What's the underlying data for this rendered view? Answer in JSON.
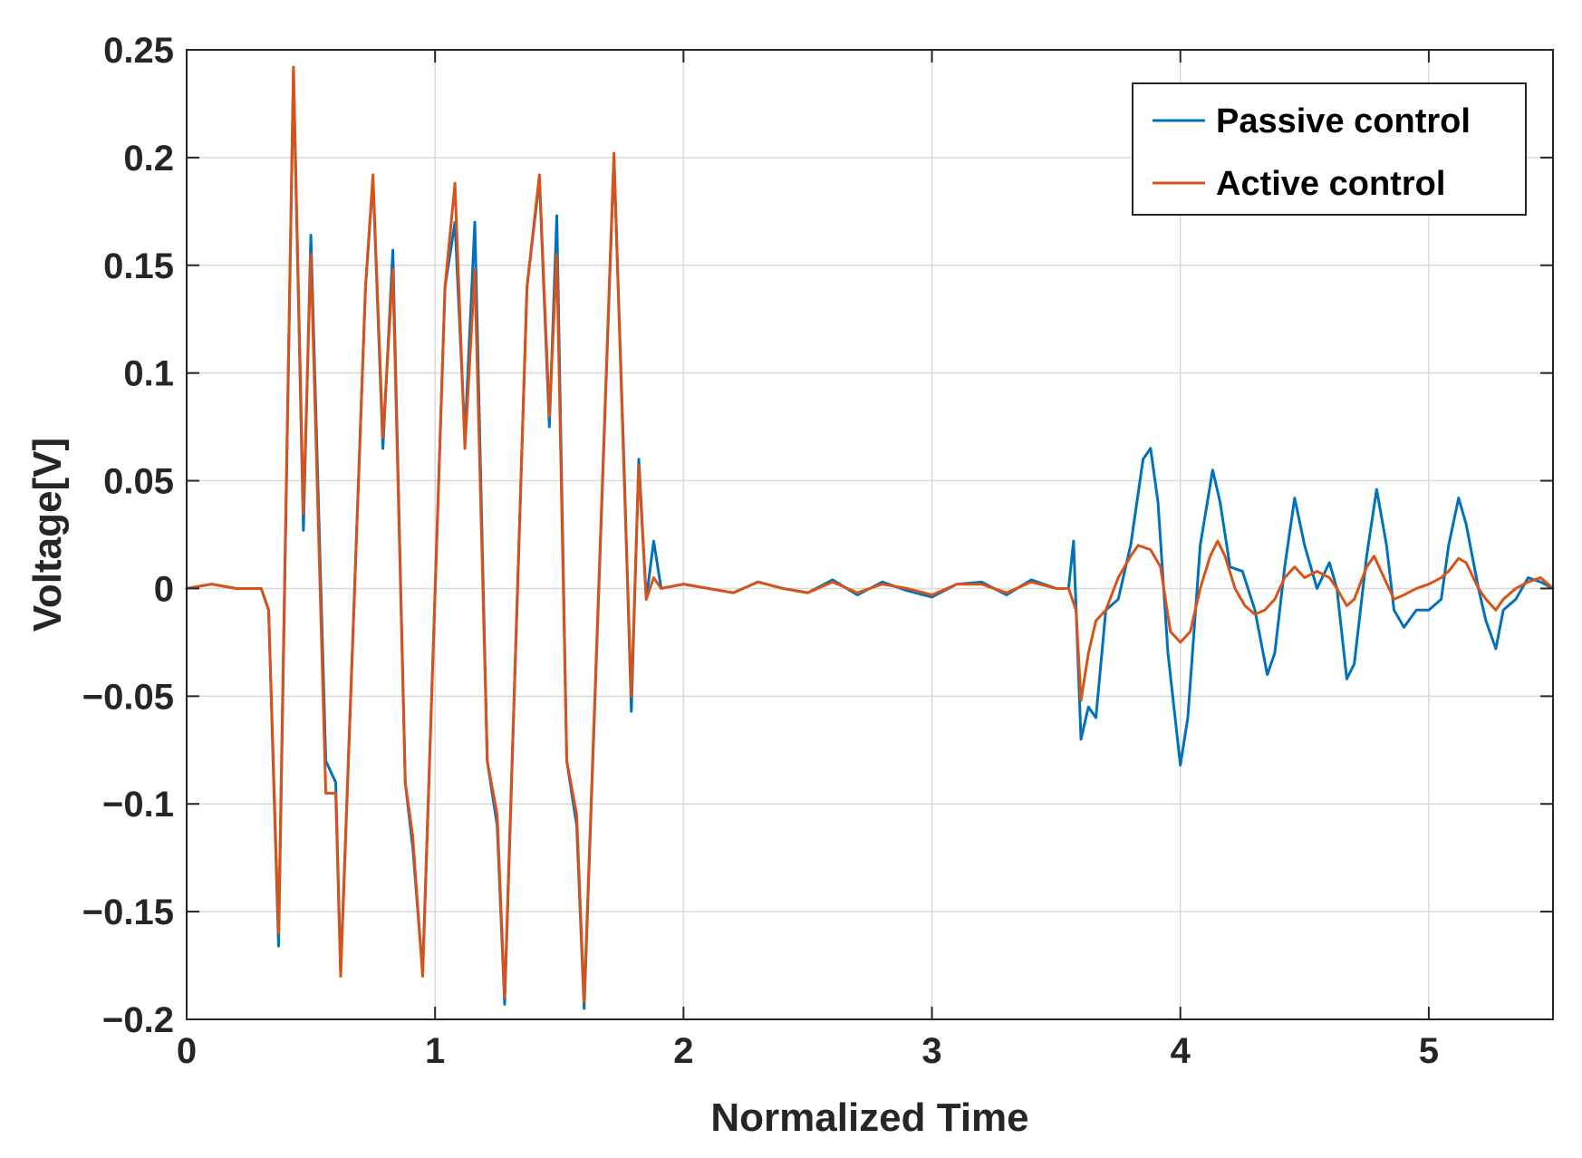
{
  "chart_data": {
    "type": "line",
    "title": "",
    "xlabel": "Normalized Time",
    "ylabel": "Voltage[V]",
    "xlim": [
      0,
      5.5
    ],
    "ylim": [
      -0.2,
      0.25
    ],
    "grid": true,
    "legend_position": "top-right",
    "x_ticks": [
      0,
      1,
      2,
      3,
      4,
      5
    ],
    "x_tick_labels": [
      "0",
      "1",
      "2",
      "3",
      "4",
      "5"
    ],
    "y_ticks": [
      -0.2,
      -0.15,
      -0.1,
      -0.05,
      0,
      0.05,
      0.1,
      0.15,
      0.2,
      0.25
    ],
    "y_tick_labels": [
      "−0.2",
      "−0.15",
      "−0.1",
      "−0.05",
      "0",
      "0.05",
      "0.1",
      "0.15",
      "0.2",
      "0.25"
    ],
    "series": [
      {
        "name": "Passive control",
        "color": "#0072BD",
        "points": [
          [
            0,
            0
          ],
          [
            0.1,
            0.002
          ],
          [
            0.2,
            0
          ],
          [
            0.3,
            0
          ],
          [
            0.33,
            -0.01
          ],
          [
            0.37,
            -0.166
          ],
          [
            0.43,
            0.24
          ],
          [
            0.47,
            0.027
          ],
          [
            0.5,
            0.164
          ],
          [
            0.56,
            -0.08
          ],
          [
            0.6,
            -0.09
          ],
          [
            0.62,
            -0.178
          ],
          [
            0.72,
            0.14
          ],
          [
            0.75,
            0.19
          ],
          [
            0.79,
            0.065
          ],
          [
            0.83,
            0.157
          ],
          [
            0.88,
            -0.09
          ],
          [
            0.91,
            -0.12
          ],
          [
            0.95,
            -0.178
          ],
          [
            1.04,
            0.14
          ],
          [
            1.08,
            0.17
          ],
          [
            1.12,
            0.07
          ],
          [
            1.16,
            0.17
          ],
          [
            1.21,
            -0.08
          ],
          [
            1.25,
            -0.11
          ],
          [
            1.28,
            -0.193
          ],
          [
            1.37,
            0.14
          ],
          [
            1.42,
            0.19
          ],
          [
            1.46,
            0.075
          ],
          [
            1.49,
            0.173
          ],
          [
            1.53,
            -0.08
          ],
          [
            1.57,
            -0.11
          ],
          [
            1.6,
            -0.195
          ],
          [
            1.72,
            0.2
          ],
          [
            1.76,
            0.06
          ],
          [
            1.79,
            -0.057
          ],
          [
            1.82,
            0.06
          ],
          [
            1.85,
            -0.005
          ],
          [
            1.88,
            0.022
          ],
          [
            1.91,
            0
          ],
          [
            2.0,
            0.002
          ],
          [
            2.1,
            0
          ],
          [
            2.2,
            -0.002
          ],
          [
            2.3,
            0.003
          ],
          [
            2.4,
            0
          ],
          [
            2.5,
            -0.002
          ],
          [
            2.6,
            0.004
          ],
          [
            2.7,
            -0.003
          ],
          [
            2.8,
            0.003
          ],
          [
            2.9,
            -0.001
          ],
          [
            3.0,
            -0.004
          ],
          [
            3.1,
            0.002
          ],
          [
            3.2,
            0.003
          ],
          [
            3.3,
            -0.003
          ],
          [
            3.4,
            0.004
          ],
          [
            3.5,
            0
          ],
          [
            3.55,
            0
          ],
          [
            3.57,
            0.022
          ],
          [
            3.6,
            -0.07
          ],
          [
            3.63,
            -0.055
          ],
          [
            3.66,
            -0.06
          ],
          [
            3.7,
            -0.01
          ],
          [
            3.75,
            -0.005
          ],
          [
            3.8,
            0.02
          ],
          [
            3.85,
            0.06
          ],
          [
            3.88,
            0.065
          ],
          [
            3.91,
            0.04
          ],
          [
            3.95,
            -0.03
          ],
          [
            4.0,
            -0.082
          ],
          [
            4.03,
            -0.06
          ],
          [
            4.08,
            0.02
          ],
          [
            4.13,
            0.055
          ],
          [
            4.16,
            0.04
          ],
          [
            4.2,
            0.01
          ],
          [
            4.25,
            0.008
          ],
          [
            4.3,
            -0.01
          ],
          [
            4.35,
            -0.04
          ],
          [
            4.38,
            -0.03
          ],
          [
            4.42,
            0.01
          ],
          [
            4.46,
            0.042
          ],
          [
            4.5,
            0.02
          ],
          [
            4.55,
            0
          ],
          [
            4.6,
            0.012
          ],
          [
            4.63,
            0
          ],
          [
            4.67,
            -0.042
          ],
          [
            4.7,
            -0.035
          ],
          [
            4.75,
            0.015
          ],
          [
            4.79,
            0.046
          ],
          [
            4.83,
            0.02
          ],
          [
            4.86,
            -0.01
          ],
          [
            4.9,
            -0.018
          ],
          [
            4.95,
            -0.01
          ],
          [
            5.0,
            -0.01
          ],
          [
            5.05,
            -0.005
          ],
          [
            5.08,
            0.02
          ],
          [
            5.12,
            0.042
          ],
          [
            5.15,
            0.03
          ],
          [
            5.2,
            0
          ],
          [
            5.23,
            -0.015
          ],
          [
            5.27,
            -0.028
          ],
          [
            5.3,
            -0.01
          ],
          [
            5.35,
            -0.005
          ],
          [
            5.4,
            0.005
          ],
          [
            5.45,
            0.003
          ],
          [
            5.5,
            0
          ]
        ]
      },
      {
        "name": "Active control",
        "color": "#D95319",
        "points": [
          [
            0,
            0
          ],
          [
            0.1,
            0.002
          ],
          [
            0.2,
            0
          ],
          [
            0.3,
            0
          ],
          [
            0.33,
            -0.01
          ],
          [
            0.37,
            -0.16
          ],
          [
            0.43,
            0.242
          ],
          [
            0.47,
            0.035
          ],
          [
            0.5,
            0.155
          ],
          [
            0.56,
            -0.095
          ],
          [
            0.6,
            -0.095
          ],
          [
            0.62,
            -0.18
          ],
          [
            0.72,
            0.14
          ],
          [
            0.75,
            0.192
          ],
          [
            0.79,
            0.07
          ],
          [
            0.83,
            0.148
          ],
          [
            0.88,
            -0.09
          ],
          [
            0.91,
            -0.115
          ],
          [
            0.95,
            -0.18
          ],
          [
            1.04,
            0.14
          ],
          [
            1.08,
            0.188
          ],
          [
            1.12,
            0.065
          ],
          [
            1.16,
            0.148
          ],
          [
            1.21,
            -0.08
          ],
          [
            1.25,
            -0.105
          ],
          [
            1.28,
            -0.19
          ],
          [
            1.37,
            0.14
          ],
          [
            1.42,
            0.192
          ],
          [
            1.46,
            0.08
          ],
          [
            1.49,
            0.155
          ],
          [
            1.53,
            -0.08
          ],
          [
            1.57,
            -0.105
          ],
          [
            1.6,
            -0.192
          ],
          [
            1.72,
            0.202
          ],
          [
            1.76,
            0.055
          ],
          [
            1.79,
            -0.05
          ],
          [
            1.82,
            0.057
          ],
          [
            1.85,
            -0.005
          ],
          [
            1.88,
            0.005
          ],
          [
            1.91,
            0
          ],
          [
            2.0,
            0.002
          ],
          [
            2.1,
            0
          ],
          [
            2.2,
            -0.002
          ],
          [
            2.3,
            0.003
          ],
          [
            2.4,
            0
          ],
          [
            2.5,
            -0.002
          ],
          [
            2.6,
            0.003
          ],
          [
            2.7,
            -0.002
          ],
          [
            2.8,
            0.002
          ],
          [
            2.9,
            0
          ],
          [
            3.0,
            -0.003
          ],
          [
            3.1,
            0.002
          ],
          [
            3.2,
            0.002
          ],
          [
            3.3,
            -0.002
          ],
          [
            3.4,
            0.003
          ],
          [
            3.5,
            0
          ],
          [
            3.55,
            0
          ],
          [
            3.58,
            -0.01
          ],
          [
            3.6,
            -0.052
          ],
          [
            3.63,
            -0.03
          ],
          [
            3.66,
            -0.015
          ],
          [
            3.7,
            -0.01
          ],
          [
            3.75,
            0.005
          ],
          [
            3.8,
            0.015
          ],
          [
            3.83,
            0.02
          ],
          [
            3.88,
            0.018
          ],
          [
            3.92,
            0.01
          ],
          [
            3.96,
            -0.02
          ],
          [
            4.0,
            -0.025
          ],
          [
            4.04,
            -0.02
          ],
          [
            4.08,
            0
          ],
          [
            4.12,
            0.015
          ],
          [
            4.15,
            0.022
          ],
          [
            4.18,
            0.015
          ],
          [
            4.22,
            0
          ],
          [
            4.26,
            -0.008
          ],
          [
            4.3,
            -0.012
          ],
          [
            4.34,
            -0.01
          ],
          [
            4.38,
            -0.005
          ],
          [
            4.42,
            0.005
          ],
          [
            4.46,
            0.01
          ],
          [
            4.5,
            0.005
          ],
          [
            4.55,
            0.008
          ],
          [
            4.6,
            0.005
          ],
          [
            4.63,
            0
          ],
          [
            4.67,
            -0.008
          ],
          [
            4.7,
            -0.005
          ],
          [
            4.75,
            0.01
          ],
          [
            4.78,
            0.015
          ],
          [
            4.82,
            0.005
          ],
          [
            4.86,
            -0.005
          ],
          [
            4.9,
            -0.003
          ],
          [
            4.95,
            0
          ],
          [
            5.0,
            0.002
          ],
          [
            5.05,
            0.005
          ],
          [
            5.08,
            0.008
          ],
          [
            5.12,
            0.014
          ],
          [
            5.15,
            0.012
          ],
          [
            5.2,
            0
          ],
          [
            5.23,
            -0.005
          ],
          [
            5.27,
            -0.01
          ],
          [
            5.3,
            -0.005
          ],
          [
            5.35,
            0
          ],
          [
            5.4,
            0.003
          ],
          [
            5.45,
            0.005
          ],
          [
            5.5,
            0
          ]
        ]
      }
    ]
  }
}
